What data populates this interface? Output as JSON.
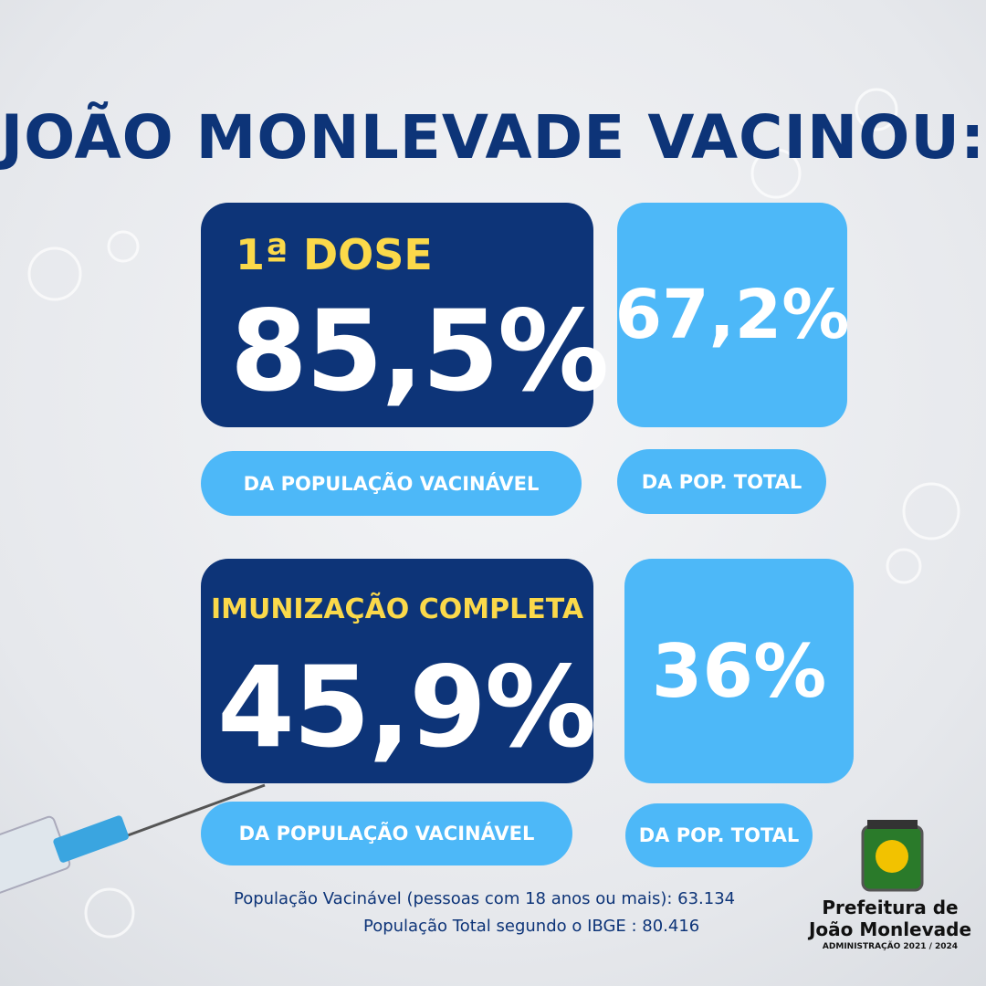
{
  "header": {
    "title": "JOÃO MONLEVADE VACINOU:"
  },
  "sections": [
    {
      "label": "1ª DOSE",
      "vaccinable_percent": "85,5%",
      "vaccinable_caption": "DA POPULAÇÃO VACINÁVEL",
      "total_percent": "67,2%",
      "total_caption": "DA POP. TOTAL"
    },
    {
      "label": "IMUNIZAÇÃO COMPLETA",
      "vaccinable_percent": "45,9%",
      "vaccinable_caption": "DA POPULAÇÃO VACINÁVEL",
      "total_percent": "36%",
      "total_caption": "DA POP. TOTAL"
    }
  ],
  "footer": {
    "lines": [
      "População Vacinável (pessoas com 18 anos ou mais): 63.134",
      "População Total segundo o IBGE : 80.416"
    ]
  },
  "logo": {
    "name_lines": [
      "Prefeitura de",
      "João Monlevade"
    ],
    "tagline": "ADMINISTRAÇÃO 2021 / 2024"
  }
}
